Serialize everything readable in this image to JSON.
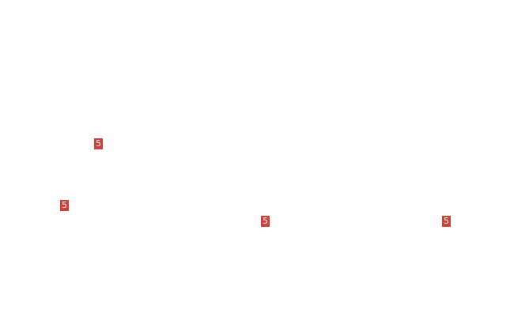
{
  "badge_color": "#cf4138",
  "badges": [
    {
      "label": "5"
    },
    {
      "label": "5"
    },
    {
      "label": "5"
    },
    {
      "label": "5"
    }
  ]
}
